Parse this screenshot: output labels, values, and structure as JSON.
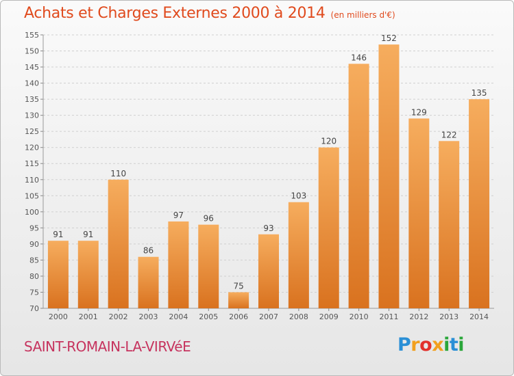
{
  "title": "Achats et Charges Externes 2000 à 2014",
  "unit": "(en milliers d'€)",
  "city": "SAINT-ROMAIN-LA-VIRVéE",
  "logo_letters": [
    "P",
    "r",
    "o",
    "x",
    "i",
    "t",
    "i"
  ],
  "colors": {
    "title": "#e04a1d",
    "city": "#c6335e",
    "bar_light": "#f6ad5e",
    "bar_dark": "#d9721f",
    "grid": "#cfcfcf"
  },
  "chart_data": {
    "type": "bar",
    "categories": [
      "2000",
      "2001",
      "2002",
      "2003",
      "2004",
      "2005",
      "2006",
      "2007",
      "2008",
      "2009",
      "2010",
      "2011",
      "2012",
      "2013",
      "2014"
    ],
    "values": [
      91,
      91,
      110,
      86,
      97,
      96,
      75,
      93,
      103,
      120,
      146,
      152,
      129,
      122,
      135
    ],
    "yticks": [
      70,
      75,
      80,
      85,
      90,
      95,
      100,
      105,
      110,
      115,
      120,
      125,
      130,
      135,
      140,
      145,
      150,
      155
    ],
    "ylim": [
      70,
      155
    ],
    "grid": true,
    "data_labels": true
  }
}
